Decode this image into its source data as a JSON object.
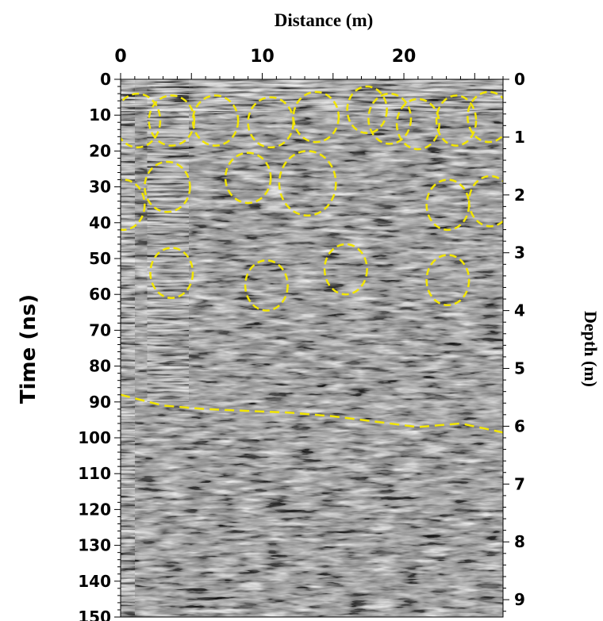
{
  "chart_data": {
    "type": "heatmap",
    "title": "Distance (m)",
    "xlabel": "Distance (m)",
    "ylabel": "Time (ns)",
    "y2label": "Depth (m)",
    "xlim": [
      0,
      27
    ],
    "ylim": [
      0,
      150
    ],
    "y2lim": [
      0,
      9.3
    ],
    "x_ticks": [
      0,
      10,
      20
    ],
    "x_tick_labels": [
      "0",
      "10",
      "20"
    ],
    "y_ticks": [
      0,
      10,
      20,
      30,
      40,
      50,
      60,
      70,
      80,
      90,
      100,
      110,
      120,
      130,
      140,
      150
    ],
    "y_tick_labels": [
      "0",
      "10",
      "20",
      "30",
      "40",
      "50",
      "60",
      "70",
      "80",
      "90",
      "100",
      "110",
      "120",
      "130",
      "140",
      "150"
    ],
    "y2_ticks": [
      0,
      1,
      2,
      3,
      4,
      5,
      6,
      7,
      8,
      9
    ],
    "y2_tick_labels": [
      "0",
      "1",
      "2",
      "3",
      "4",
      "5",
      "6",
      "7",
      "8",
      "9"
    ],
    "colormap": "grayscale",
    "annotation_color": "#f2e600",
    "circles": [
      {
        "x": 1.2,
        "y": 11.5,
        "rx": 1.6,
        "ry": 7.5
      },
      {
        "x": 3.6,
        "y": 11.5,
        "rx": 1.6,
        "ry": 7.0
      },
      {
        "x": 6.7,
        "y": 11.5,
        "rx": 1.6,
        "ry": 7.0
      },
      {
        "x": 10.6,
        "y": 12.0,
        "rx": 1.6,
        "ry": 7.0
      },
      {
        "x": 13.8,
        "y": 10.5,
        "rx": 1.6,
        "ry": 7.0
      },
      {
        "x": 17.4,
        "y": 8.5,
        "rx": 1.4,
        "ry": 6.5
      },
      {
        "x": 19.0,
        "y": 11.0,
        "rx": 1.5,
        "ry": 7.0
      },
      {
        "x": 21.0,
        "y": 12.5,
        "rx": 1.5,
        "ry": 7.0
      },
      {
        "x": 23.7,
        "y": 11.5,
        "rx": 1.4,
        "ry": 7.0
      },
      {
        "x": 26.0,
        "y": 10.5,
        "rx": 1.5,
        "ry": 7.0
      },
      {
        "x": 0.2,
        "y": 35.0,
        "rx": 1.5,
        "ry": 7.0
      },
      {
        "x": 3.3,
        "y": 30.0,
        "rx": 1.6,
        "ry": 7.0
      },
      {
        "x": 9.0,
        "y": 27.5,
        "rx": 1.6,
        "ry": 7.0
      },
      {
        "x": 13.2,
        "y": 29.0,
        "rx": 2.0,
        "ry": 9.0
      },
      {
        "x": 23.1,
        "y": 35.0,
        "rx": 1.5,
        "ry": 7.0
      },
      {
        "x": 26.1,
        "y": 34.0,
        "rx": 1.5,
        "ry": 7.0
      },
      {
        "x": 3.6,
        "y": 54.0,
        "rx": 1.5,
        "ry": 7.0
      },
      {
        "x": 10.3,
        "y": 57.5,
        "rx": 1.5,
        "ry": 7.0
      },
      {
        "x": 15.9,
        "y": 53.0,
        "rx": 1.5,
        "ry": 7.0
      },
      {
        "x": 23.1,
        "y": 56.0,
        "rx": 1.5,
        "ry": 7.0
      }
    ],
    "dashed_line": {
      "x": [
        0,
        3,
        6,
        9,
        12,
        15,
        18,
        21,
        24,
        27
      ],
      "y": [
        88,
        91,
        92,
        92.5,
        93,
        94,
        95.5,
        97,
        96,
        98.5
      ]
    },
    "grid": false,
    "legend": "none"
  }
}
